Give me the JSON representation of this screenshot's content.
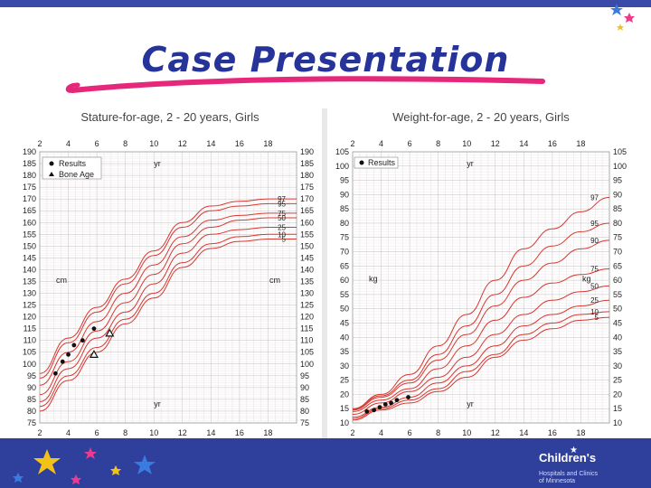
{
  "slide": {
    "title": "Case Presentation",
    "accent_color": "#26349a",
    "swoosh_color": "#e6287a",
    "bar_color": "#2f3f9c"
  },
  "logo": {
    "name": "Children's",
    "subtitle_line1": "Hospitals and Clinics",
    "subtitle_line2": "of Minnesota"
  },
  "chart_data": [
    {
      "type": "line",
      "title": "Stature-for-age, 2 - 20 years, Girls",
      "x_ticks": [
        "2",
        "4",
        "6",
        "8",
        "10",
        "12",
        "14",
        "16",
        "18"
      ],
      "xlim": [
        2,
        20
      ],
      "ylim": [
        75,
        190
      ],
      "y_step": 5,
      "unit_label": "cm",
      "x_unit_label": "yr",
      "legend": [
        "Results",
        "Bone Age"
      ],
      "grid": true,
      "percentile_labels": [
        "97",
        "95",
        "75",
        "50",
        "25",
        "10",
        "5"
      ],
      "percentile_curves": [
        {
          "name": "97",
          "x": [
            2,
            4,
            6,
            8,
            10,
            12,
            14,
            16,
            18,
            20
          ],
          "y": [
            96,
            111,
            124,
            136,
            148,
            160,
            167,
            169,
            170,
            170
          ]
        },
        {
          "name": "95",
          "x": [
            2,
            4,
            6,
            8,
            10,
            12,
            14,
            16,
            18,
            20
          ],
          "y": [
            94,
            109,
            122,
            134,
            146,
            158,
            165,
            167,
            168,
            168
          ]
        },
        {
          "name": "75",
          "x": [
            2,
            4,
            6,
            8,
            10,
            12,
            14,
            16,
            18,
            20
          ],
          "y": [
            91,
            105,
            118,
            130,
            142,
            154,
            161,
            163,
            164,
            164
          ]
        },
        {
          "name": "50",
          "x": [
            2,
            4,
            6,
            8,
            10,
            12,
            14,
            16,
            18,
            20
          ],
          "y": [
            87,
            101,
            114,
            126,
            138,
            151,
            158,
            161,
            162,
            162
          ]
        },
        {
          "name": "25",
          "x": [
            2,
            4,
            6,
            8,
            10,
            12,
            14,
            16,
            18,
            20
          ],
          "y": [
            84,
            98,
            111,
            122,
            134,
            147,
            155,
            157,
            158,
            158
          ]
        },
        {
          "name": "10",
          "x": [
            2,
            4,
            6,
            8,
            10,
            12,
            14,
            16,
            18,
            20
          ],
          "y": [
            82,
            95,
            107,
            119,
            130,
            143,
            151,
            154,
            155,
            155
          ]
        },
        {
          "name": "5",
          "x": [
            2,
            4,
            6,
            8,
            10,
            12,
            14,
            16,
            18,
            20
          ],
          "y": [
            80,
            93,
            105,
            117,
            128,
            141,
            149,
            152,
            153,
            153
          ]
        }
      ],
      "series": [
        {
          "name": "Results",
          "marker": "circle",
          "x": [
            3.1,
            3.6,
            4.0,
            4.4,
            5.0,
            5.8
          ],
          "y": [
            96,
            101,
            104,
            108,
            110,
            115
          ]
        },
        {
          "name": "Bone Age",
          "marker": "triangle",
          "x": [
            5.8,
            6.9
          ],
          "y": [
            104,
            113
          ]
        }
      ]
    },
    {
      "type": "line",
      "title": "Weight-for-age, 2 - 20 years, Girls",
      "x_ticks": [
        "2",
        "4",
        "6",
        "8",
        "10",
        "12",
        "14",
        "16",
        "18"
      ],
      "xlim": [
        2,
        20
      ],
      "ylim": [
        10,
        105
      ],
      "y_step": 5,
      "unit_label": "kg",
      "x_unit_label": "yr",
      "legend": [
        "Results"
      ],
      "grid": true,
      "percentile_labels": [
        "97",
        "95",
        "90",
        "75",
        "50",
        "25",
        "10",
        "5"
      ],
      "percentile_curves": [
        {
          "name": "97",
          "x": [
            2,
            4,
            6,
            8,
            10,
            12,
            14,
            16,
            18,
            20
          ],
          "y": [
            15,
            20,
            27,
            37,
            48,
            60,
            71,
            78,
            84,
            89
          ]
        },
        {
          "name": "95",
          "x": [
            2,
            4,
            6,
            8,
            10,
            12,
            14,
            16,
            18,
            20
          ],
          "y": [
            14.8,
            19.5,
            25,
            34,
            44,
            55,
            65,
            72,
            77,
            80
          ]
        },
        {
          "name": "90",
          "x": [
            2,
            4,
            6,
            8,
            10,
            12,
            14,
            16,
            18,
            20
          ],
          "y": [
            14.5,
            19,
            24,
            32,
            41,
            51,
            60,
            66,
            71,
            74
          ]
        },
        {
          "name": "75",
          "x": [
            2,
            4,
            6,
            8,
            10,
            12,
            14,
            16,
            18,
            20
          ],
          "y": [
            14,
            18,
            22,
            29,
            37,
            46,
            54,
            59,
            62,
            64
          ]
        },
        {
          "name": "50",
          "x": [
            2,
            4,
            6,
            8,
            10,
            12,
            14,
            16,
            18,
            20
          ],
          "y": [
            13,
            17,
            21,
            26,
            33,
            41,
            48,
            53,
            56,
            58
          ]
        },
        {
          "name": "25",
          "x": [
            2,
            4,
            6,
            8,
            10,
            12,
            14,
            16,
            18,
            20
          ],
          "y": [
            12,
            15.5,
            19,
            24,
            30,
            37,
            44,
            48,
            51,
            53
          ]
        },
        {
          "name": "10",
          "x": [
            2,
            4,
            6,
            8,
            10,
            12,
            14,
            16,
            18,
            20
          ],
          "y": [
            11.5,
            15,
            18,
            22,
            28,
            34,
            41,
            45,
            48,
            49
          ]
        },
        {
          "name": "5",
          "x": [
            2,
            4,
            6,
            8,
            10,
            12,
            14,
            16,
            18,
            20
          ],
          "y": [
            11,
            14.5,
            17,
            21,
            26,
            33,
            39,
            43,
            46,
            47
          ]
        }
      ],
      "series": [
        {
          "name": "Results",
          "marker": "circle",
          "x": [
            3.0,
            3.5,
            3.9,
            4.3,
            4.7,
            5.1,
            5.9
          ],
          "y": [
            14,
            14.5,
            15.5,
            16.5,
            17,
            18,
            19
          ]
        }
      ]
    }
  ]
}
